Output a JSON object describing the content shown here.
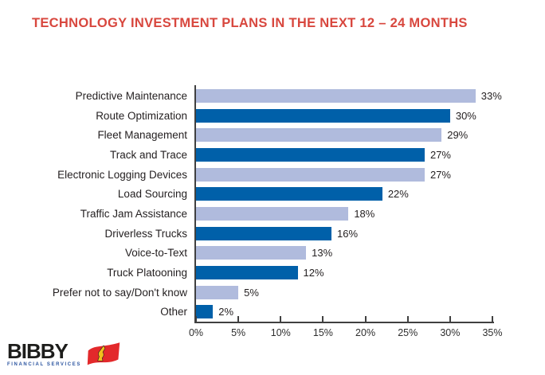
{
  "title": "TECHNOLOGY INVESTMENT PLANS IN THE NEXT 12 – 24 MONTHS",
  "colors": {
    "title_red": "#d8473e",
    "light_bar": "#b0bbdd",
    "dark_bar": "#0060a9",
    "axis": "#404040",
    "text": "#231f20",
    "logo_black": "#1d1d1b",
    "logo_blue": "#2c55a0",
    "flag_red": "#e3292b",
    "flag_yellow": "#f2c01d"
  },
  "chart_data": {
    "type": "bar",
    "orientation": "horizontal",
    "title": "TECHNOLOGY INVESTMENT PLANS IN THE NEXT 12 – 24 MONTHS",
    "categories": [
      "Predictive Maintenance",
      "Route Optimization",
      "Fleet Management",
      "Track and Trace",
      "Electronic Logging Devices",
      "Load Sourcing",
      "Traffic Jam Assistance",
      "Driverless Trucks",
      "Voice-to-Text",
      "Truck Platooning",
      "Prefer not to say/Don't know",
      "Other"
    ],
    "values": [
      33,
      30,
      29,
      27,
      27,
      22,
      18,
      16,
      13,
      12,
      5,
      2
    ],
    "value_labels": [
      "33%",
      "30%",
      "29%",
      "27%",
      "27%",
      "22%",
      "18%",
      "16%",
      "13%",
      "12%",
      "5%",
      "2%"
    ],
    "x_ticks": [
      "0%",
      "5%",
      "10%",
      "15%",
      "20%",
      "25%",
      "30%",
      "35%"
    ],
    "x_tick_values": [
      0,
      5,
      10,
      15,
      20,
      25,
      30,
      35
    ],
    "xlim": [
      0,
      35
    ],
    "xlabel": "",
    "ylabel": "",
    "grid": false,
    "legend": "none",
    "color_pattern": "alternating light/dark starting with light"
  },
  "logo": {
    "wordmark": "BIBBY",
    "subtitle": "FINANCIAL SERVICES"
  }
}
